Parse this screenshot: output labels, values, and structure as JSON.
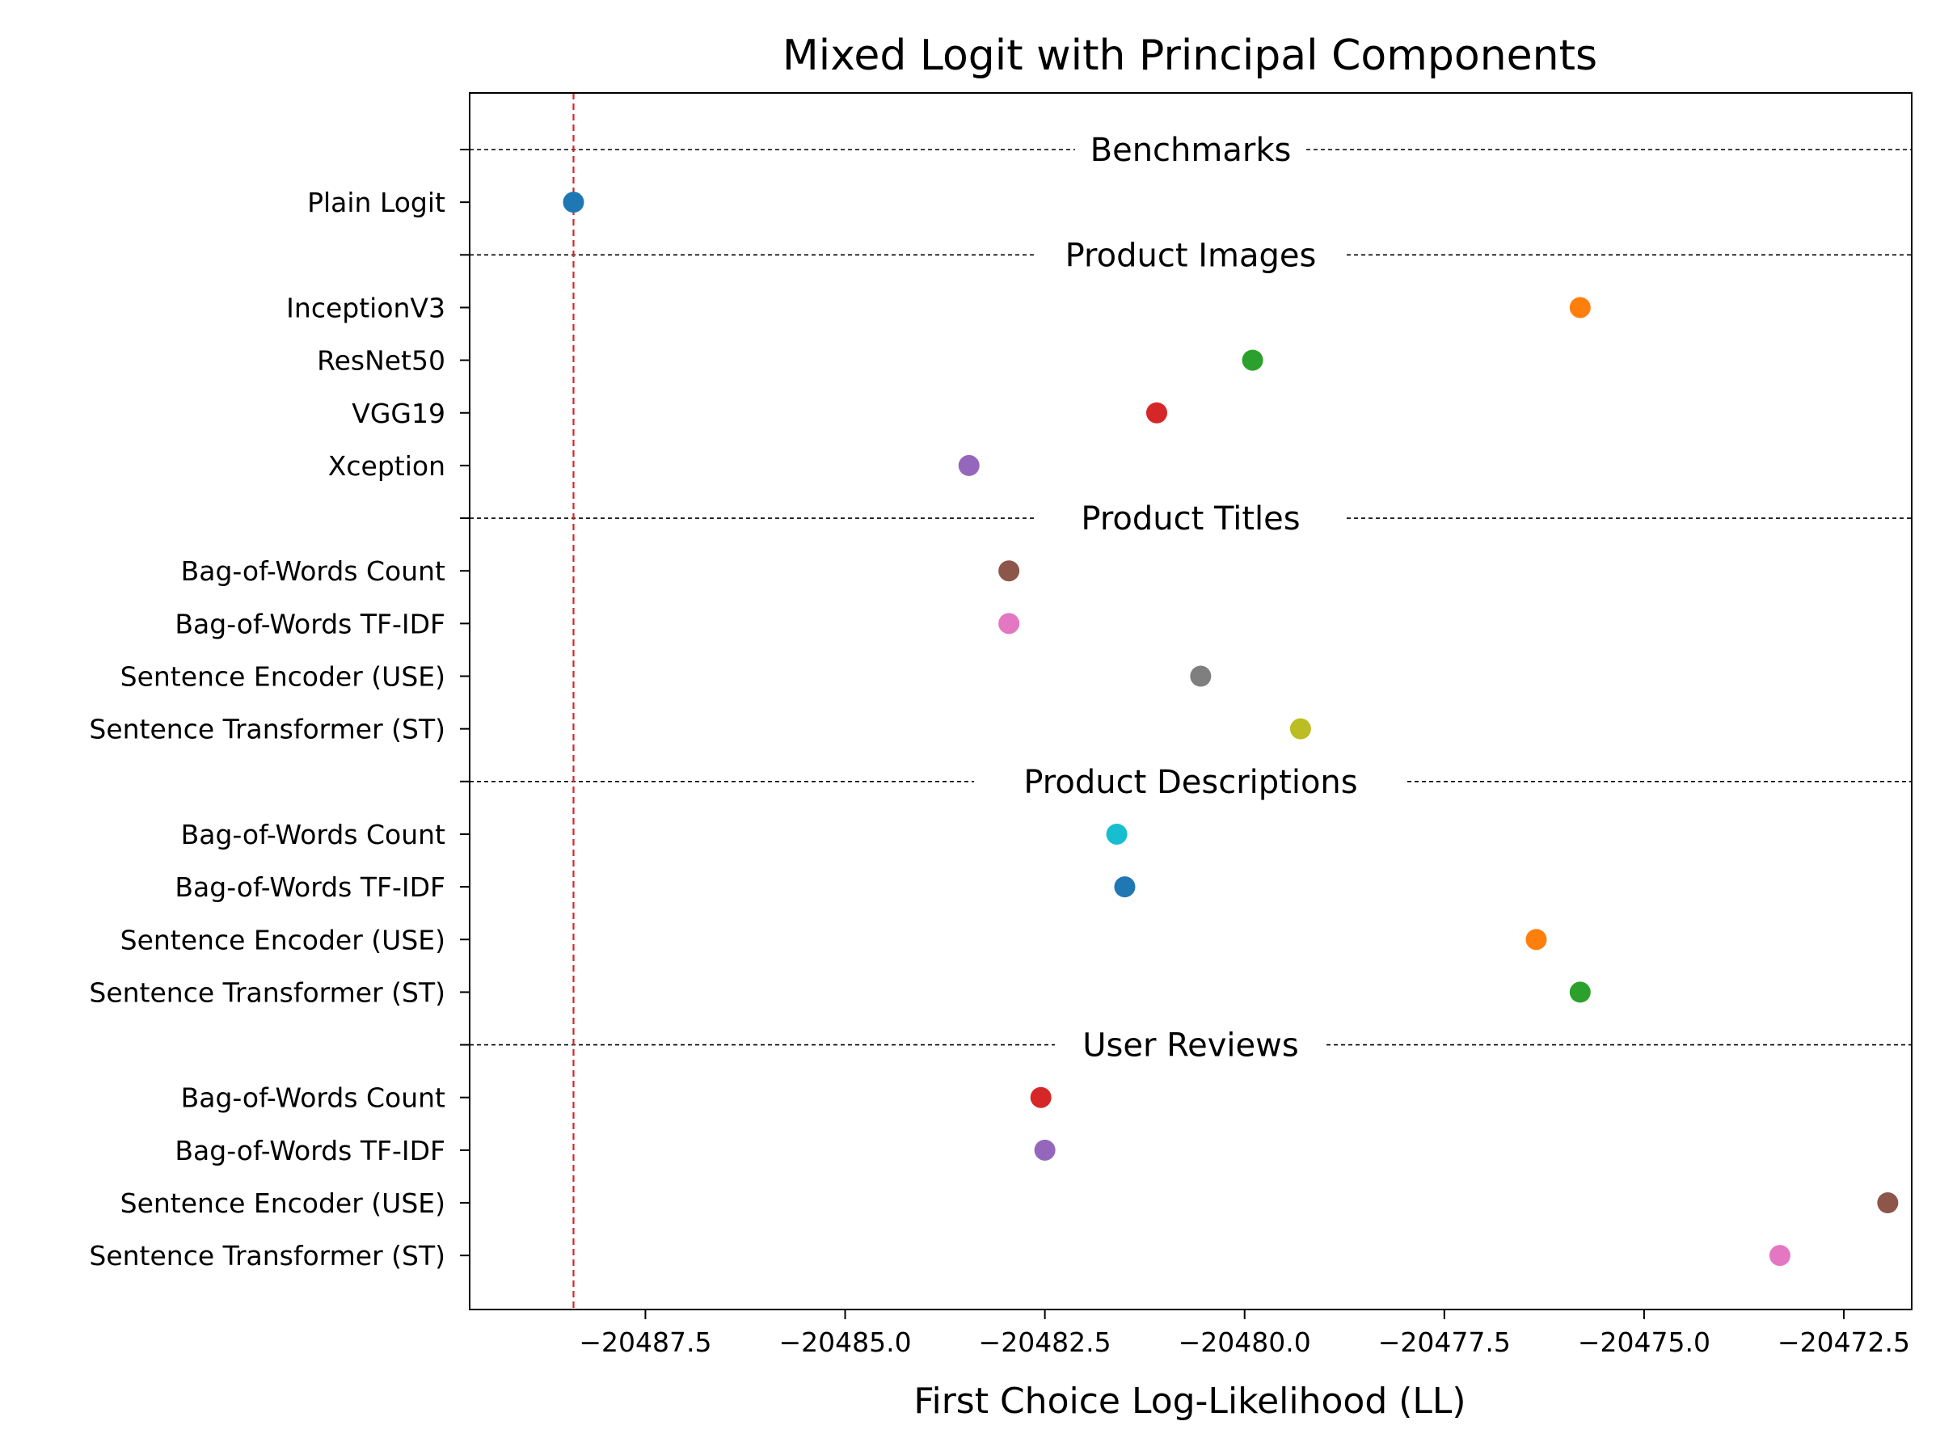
{
  "chart_data": {
    "type": "scatter",
    "title": "Mixed Logit with Principal Components",
    "xlabel": "First Choice Log-Likelihood (LL)",
    "ylabel": "",
    "xlim": [
      -20489.7,
      -20471.65
    ],
    "xticks": [
      {
        "value": -20487.5,
        "label": "−20487.5"
      },
      {
        "value": -20485.0,
        "label": "−20485.0"
      },
      {
        "value": -20482.5,
        "label": "−20482.5"
      },
      {
        "value": -20480.0,
        "label": "−20480.0"
      },
      {
        "value": -20477.5,
        "label": "−20477.5"
      },
      {
        "value": -20475.0,
        "label": "−20475.0"
      },
      {
        "value": -20472.5,
        "label": "−20472.5"
      }
    ],
    "reference_line": {
      "x": -20488.4,
      "color": "#d62728",
      "style": "dashed"
    },
    "grid": false,
    "groups": [
      {
        "name": "Benchmarks",
        "points": [
          {
            "label": "Plain Logit",
            "x": -20488.4,
            "color": "#1f77b4"
          }
        ]
      },
      {
        "name": "Product Images",
        "points": [
          {
            "label": "InceptionV3",
            "x": -20475.8,
            "color": "#ff7f0e"
          },
          {
            "label": "ResNet50",
            "x": -20479.9,
            "color": "#2ca02c"
          },
          {
            "label": "VGG19",
            "x": -20481.1,
            "color": "#d62728"
          },
          {
            "label": "Xception",
            "x": -20483.45,
            "color": "#9467bd"
          }
        ]
      },
      {
        "name": "Product Titles",
        "points": [
          {
            "label": "Bag-of-Words Count",
            "x": -20482.95,
            "color": "#8c564b"
          },
          {
            "label": "Bag-of-Words TF-IDF",
            "x": -20482.95,
            "color": "#e377c2"
          },
          {
            "label": "Sentence Encoder (USE)",
            "x": -20480.55,
            "color": "#7f7f7f"
          },
          {
            "label": "Sentence Transformer (ST)",
            "x": -20479.3,
            "color": "#bcbd22"
          }
        ]
      },
      {
        "name": "Product Descriptions",
        "points": [
          {
            "label": "Bag-of-Words Count",
            "x": -20481.6,
            "color": "#17becf"
          },
          {
            "label": "Bag-of-Words TF-IDF",
            "x": -20481.5,
            "color": "#1f77b4"
          },
          {
            "label": "Sentence Encoder (USE)",
            "x": -20476.35,
            "color": "#ff7f0e"
          },
          {
            "label": "Sentence Transformer (ST)",
            "x": -20475.8,
            "color": "#2ca02c"
          }
        ]
      },
      {
        "name": "User Reviews",
        "points": [
          {
            "label": "Bag-of-Words Count",
            "x": -20482.55,
            "color": "#d62728"
          },
          {
            "label": "Bag-of-Words TF-IDF",
            "x": -20482.5,
            "color": "#9467bd"
          },
          {
            "label": "Sentence Encoder (USE)",
            "x": -20471.95,
            "color": "#8c564b"
          },
          {
            "label": "Sentence Transformer (ST)",
            "x": -20473.3,
            "color": "#e377c2"
          }
        ]
      }
    ]
  }
}
